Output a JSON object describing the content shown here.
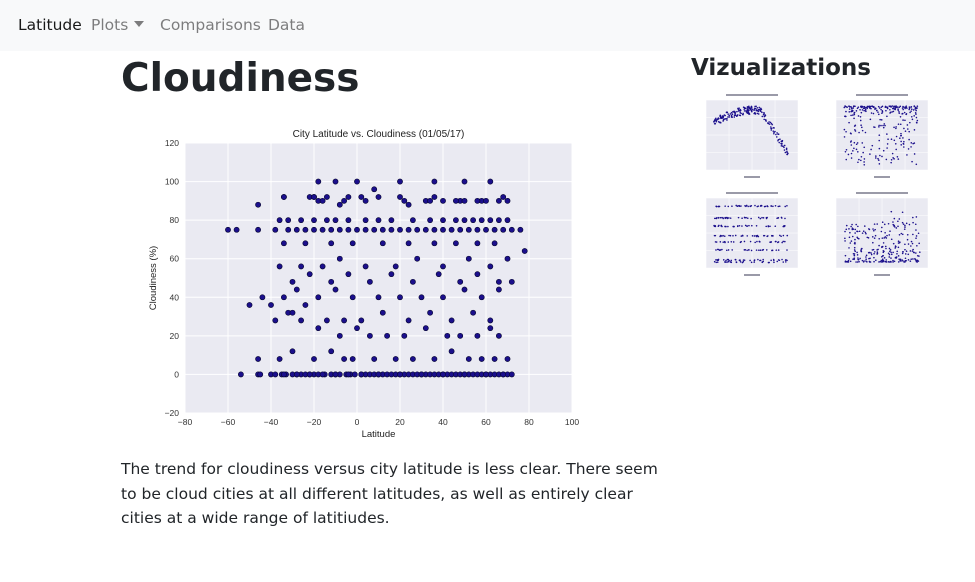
{
  "navbar": {
    "brand": "Latitude",
    "items": [
      {
        "label": "Plots",
        "dropdown": true
      },
      {
        "label": "Comparisons",
        "dropdown": false
      },
      {
        "label": "Data",
        "dropdown": false
      }
    ]
  },
  "main": {
    "title": "Cloudiness",
    "description": "The trend for cloudiness versus city latitude is less clear. There seem to be cloud cities at all different latitudes, as well as entirely clear cities at a wide range of latitiudes."
  },
  "sidebar": {
    "title": "Vizualizations",
    "thumbnails": [
      {
        "name": "temperature"
      },
      {
        "name": "humidity"
      },
      {
        "name": "cloudiness"
      },
      {
        "name": "wind-speed"
      }
    ]
  },
  "colors": {
    "plot_background": "#eaeaf2",
    "point_fill": "#1b0f8c",
    "point_edge": "#05052e",
    "navbar_background": "#f8f9fa"
  },
  "chart_data": {
    "type": "scatter",
    "title": "City Latitude vs. Cloudiness (01/05/17)",
    "xlabel": "Latitude",
    "ylabel": "Cloudiness (%)",
    "xlim": [
      -80,
      100
    ],
    "ylim": [
      -20,
      120
    ],
    "xticks": [
      -80,
      -60,
      -40,
      -20,
      0,
      20,
      40,
      60,
      80,
      100
    ],
    "yticks": [
      -20,
      0,
      20,
      40,
      60,
      80,
      100,
      120
    ],
    "grid": true,
    "x": [
      -54,
      -46,
      -45,
      -40,
      -38,
      -35,
      -33,
      -30,
      -28,
      -26,
      -24,
      -22,
      -20,
      -18,
      -15,
      -12,
      -10,
      -8,
      -5,
      -3,
      -1,
      2,
      4,
      6,
      8,
      10,
      12,
      14,
      16,
      18,
      20,
      22,
      24,
      26,
      28,
      30,
      32,
      34,
      36,
      38,
      40,
      42,
      44,
      46,
      48,
      50,
      52,
      54,
      56,
      58,
      60,
      62,
      64,
      66,
      68,
      70,
      72,
      -34,
      -28,
      -22,
      -16,
      -10,
      -4,
      2,
      10,
      20,
      30,
      40,
      50,
      60,
      68,
      -46,
      -36,
      -30,
      -20,
      -12,
      -6,
      -2,
      8,
      18,
      26,
      36,
      44,
      52,
      58,
      64,
      70,
      -50,
      -40,
      -32,
      -24,
      -18,
      -8,
      0,
      6,
      14,
      22,
      32,
      42,
      48,
      56,
      62,
      66,
      -38,
      -30,
      -26,
      -14,
      -6,
      2,
      12,
      24,
      34,
      44,
      54,
      62,
      -44,
      -34,
      -28,
      -18,
      -10,
      -2,
      10,
      20,
      30,
      40,
      50,
      58,
      66,
      72,
      -30,
      -22,
      -12,
      -4,
      6,
      16,
      26,
      38,
      48,
      56,
      66,
      -36,
      -26,
      -16,
      -8,
      4,
      18,
      28,
      40,
      52,
      62,
      70,
      -34,
      -24,
      -12,
      -2,
      12,
      24,
      36,
      46,
      56,
      64,
      78,
      -60,
      -56,
      -46,
      -38,
      -32,
      -28,
      -24,
      -20,
      -16,
      -12,
      -8,
      -4,
      0,
      4,
      8,
      12,
      16,
      20,
      24,
      28,
      32,
      36,
      40,
      44,
      48,
      52,
      56,
      60,
      64,
      68,
      72,
      76,
      -36,
      -32,
      -26,
      -20,
      -14,
      -10,
      -4,
      4,
      10,
      16,
      26,
      34,
      40,
      46,
      50,
      54,
      58,
      62,
      66,
      70,
      -46,
      -34,
      -20,
      -14,
      -8,
      2,
      10,
      24,
      36,
      48,
      58,
      68,
      -34,
      -22,
      -18,
      -4,
      8,
      20,
      32,
      40,
      50,
      60,
      70,
      -18,
      -10,
      0,
      20,
      36,
      50,
      62,
      -20,
      -16,
      -6,
      4,
      22,
      34,
      46,
      56,
      66
    ],
    "y": [
      0,
      0,
      0,
      0,
      0,
      0,
      0,
      0,
      0,
      0,
      0,
      0,
      0,
      0,
      0,
      0,
      0,
      0,
      0,
      0,
      0,
      0,
      0,
      0,
      0,
      0,
      0,
      0,
      0,
      0,
      0,
      0,
      0,
      0,
      0,
      0,
      0,
      0,
      0,
      0,
      0,
      0,
      0,
      0,
      0,
      0,
      0,
      0,
      0,
      0,
      0,
      0,
      0,
      0,
      0,
      0,
      0,
      0,
      0,
      0,
      0,
      0,
      0,
      0,
      0,
      0,
      0,
      0,
      0,
      0,
      0,
      8,
      8,
      12,
      8,
      12,
      8,
      8,
      8,
      8,
      8,
      8,
      12,
      8,
      8,
      8,
      8,
      36,
      36,
      32,
      36,
      24,
      20,
      24,
      20,
      20,
      20,
      24,
      20,
      20,
      20,
      24,
      20,
      28,
      32,
      28,
      28,
      28,
      28,
      32,
      28,
      32,
      28,
      32,
      28,
      40,
      40,
      44,
      40,
      44,
      40,
      40,
      40,
      40,
      40,
      44,
      40,
      44,
      48,
      48,
      52,
      48,
      52,
      48,
      52,
      48,
      52,
      48,
      52,
      48,
      56,
      56,
      56,
      60,
      56,
      56,
      60,
      56,
      60,
      56,
      60,
      68,
      68,
      68,
      68,
      68,
      68,
      68,
      68,
      68,
      68,
      64,
      75,
      75,
      75,
      75,
      75,
      75,
      75,
      75,
      75,
      75,
      75,
      75,
      75,
      75,
      75,
      75,
      75,
      75,
      75,
      75,
      75,
      75,
      75,
      75,
      75,
      75,
      75,
      75,
      75,
      75,
      75,
      75,
      80,
      80,
      80,
      80,
      80,
      80,
      80,
      80,
      80,
      80,
      80,
      80,
      80,
      80,
      80,
      80,
      80,
      80,
      80,
      80,
      88,
      92,
      92,
      92,
      88,
      92,
      92,
      88,
      92,
      90,
      90,
      92,
      92,
      92,
      90,
      92,
      96,
      92,
      90,
      90,
      90,
      90,
      90,
      100,
      100,
      100,
      100,
      100,
      100,
      100,
      92,
      90,
      90,
      90,
      90,
      90,
      90,
      90,
      90
    ]
  }
}
